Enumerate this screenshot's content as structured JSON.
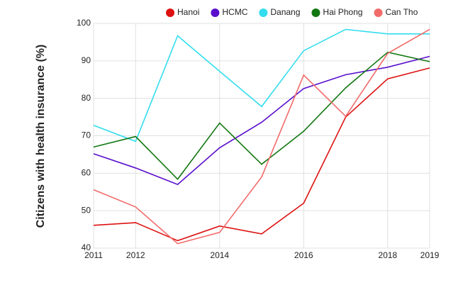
{
  "chart_data": {
    "type": "line",
    "y_label": "Citizens with health insurance (%)",
    "x": [
      2011,
      2012,
      2013,
      2014,
      2015,
      2016,
      2017,
      2018,
      2019
    ],
    "xlim": [
      2011,
      2019
    ],
    "xticks": [
      2011,
      2012,
      2014,
      2016,
      2018,
      2019
    ],
    "ylim": [
      40,
      100
    ],
    "yticks": [
      40,
      50,
      60,
      70,
      80,
      90,
      100
    ],
    "grid": true,
    "legend": "top",
    "series": [
      {
        "name": "Hanoi",
        "color": "#dd1111",
        "values": [
          46.1,
          46.8,
          42,
          45.9,
          43.8,
          52,
          75,
          85.2,
          88.1
        ]
      },
      {
        "name": "HCMC",
        "color": "#5a0fcc",
        "values": [
          65.2,
          61.4,
          57,
          66.8,
          73.6,
          82.6,
          86.3,
          88.3,
          91.2
        ]
      },
      {
        "name": "Danang",
        "color": "#33ddee",
        "values": [
          72.8,
          68.5,
          96.7,
          87.2,
          77.8,
          92.7,
          98.4,
          97.2,
          97.2
        ]
      },
      {
        "name": "Hai Phong",
        "color": "#117711",
        "values": [
          67,
          69.8,
          58.4,
          73.4,
          62.4,
          71.2,
          82.8,
          92.3,
          89.8
        ]
      },
      {
        "name": "Can Tho",
        "color": "#f26b6b",
        "values": [
          55.6,
          51,
          41.2,
          44.2,
          59,
          86.2,
          75.2,
          92,
          98.4
        ]
      }
    ]
  }
}
